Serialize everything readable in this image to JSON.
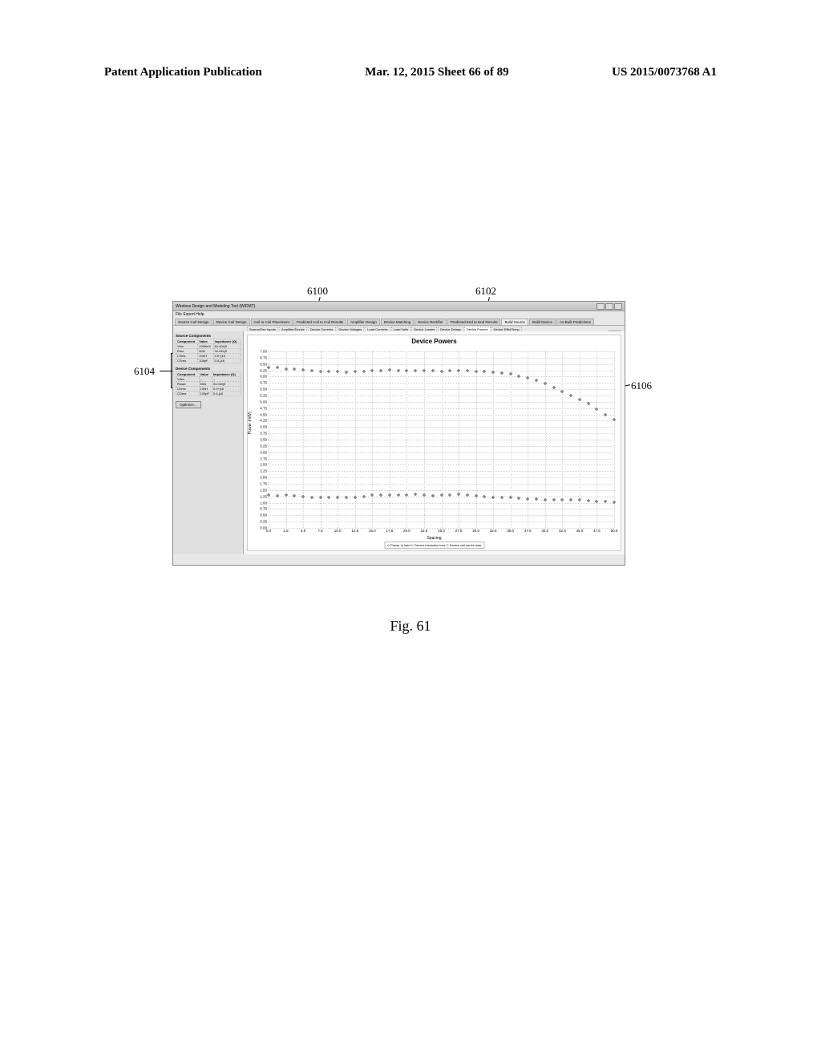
{
  "header": {
    "left": "Patent Application Publication",
    "center": "Mar. 12, 2015  Sheet 66 of 89",
    "right": "US 2015/0073768 A1"
  },
  "callouts": {
    "c6100": "6100",
    "c6102": "6102",
    "c6104": "6104",
    "c6106": "6106"
  },
  "window": {
    "title": "Wireless Design and Modeling Tool (WiDMT)",
    "menu": "File   Export   Help",
    "main_tabs": [
      "Source Coil Design",
      "Device Coil Design",
      "Coil to Coil Placement",
      "Predicted Coil to Coil Results",
      "Amplifier Design",
      "Device Matching",
      "Device Rectifier",
      "Predicted End to End Results",
      "Build Source",
      "Build Device",
      "As-Built Predictions"
    ],
    "active_main_tab": 8,
    "sub_tabs": [
      "Source/Dev Inputs",
      "Amplifier/Device",
      "Device Currents",
      "Device Voltages",
      "Load Currents",
      "Load Volts",
      "Device Losses",
      "Device Delays",
      "Device Powers",
      "Device Effid/Temp"
    ],
    "active_sub_tab": 8
  },
  "sidebar": {
    "source": {
      "title": "Source Components",
      "columns": [
        "Component",
        "Value",
        "Impedance (Ω)"
      ],
      "rows": [
        [
          "Vsrc",
          "1000mV",
          "61.40±j0"
        ],
        [
          "Rsrc",
          "50Ω",
          "31.04±j0"
        ],
        [
          "LSres",
          "10nH",
          "0.0+j16"
        ],
        [
          "CSres",
          "100pF",
          "0.0-j16"
        ]
      ]
    },
    "device": {
      "title": "Device Components",
      "columns": [
        "Component",
        "Value",
        "Impedance (Ω)"
      ],
      "rows": [
        [
          "Vdev",
          "–",
          "–"
        ],
        [
          "Rload",
          "50Ω",
          "31.04±j0"
        ],
        [
          "LDres",
          "10nH",
          "0.0+j16"
        ],
        [
          "CDres",
          "100pF",
          "0.0-j16"
        ]
      ]
    },
    "button": "Optimize..."
  },
  "chart": {
    "type": "scatter",
    "title": "Device Powers",
    "ylabel": "Power (mW)",
    "xlabel": "Spacing",
    "ylim": [
      0.0,
      7.0
    ],
    "ytick_step": 0.25,
    "xlim": [
      0.0,
      50.0
    ],
    "xtick_step": 2.5,
    "grid_color": "#d0d0d0",
    "background_color": "#ffffff",
    "point_color": "#606060",
    "point_size": 3,
    "legend": "◇ Power to load   ◇ Device resonator loss   ◇ Device coil series loss",
    "series": [
      {
        "label": "Power to load",
        "x": [
          0,
          1.25,
          2.5,
          3.75,
          5,
          6.25,
          7.5,
          8.75,
          10,
          11.25,
          12.5,
          13.75,
          15,
          16.25,
          17.5,
          18.75,
          20,
          21.25,
          22.5,
          23.75,
          25,
          26.25,
          27.5,
          28.75,
          30,
          31.25,
          32.5,
          33.75,
          35,
          36.25,
          37.5,
          38.75,
          40,
          41.25,
          42.5,
          43.75,
          45,
          46.25,
          47.5,
          48.75,
          50
        ],
        "y": [
          6.35,
          6.35,
          6.3,
          6.3,
          6.28,
          6.25,
          6.22,
          6.2,
          6.2,
          6.18,
          6.22,
          6.22,
          6.24,
          6.25,
          6.27,
          6.25,
          6.25,
          6.25,
          6.23,
          6.23,
          6.22,
          6.24,
          6.25,
          6.25,
          6.22,
          6.2,
          6.18,
          6.15,
          6.1,
          6.02,
          5.95,
          5.85,
          5.72,
          5.58,
          5.42,
          5.25,
          5.1,
          4.92,
          4.72,
          4.5,
          4.28
        ]
      },
      {
        "label": "Device loss",
        "x": [
          0,
          1.25,
          2.5,
          3.75,
          5,
          6.25,
          7.5,
          8.75,
          10,
          11.25,
          12.5,
          13.75,
          15,
          16.25,
          17.5,
          18.75,
          20,
          21.25,
          22.5,
          23.75,
          25,
          26.25,
          27.5,
          28.75,
          30,
          31.25,
          32.5,
          33.75,
          35,
          36.25,
          37.5,
          38.75,
          40,
          41.25,
          42.5,
          43.75,
          45,
          46.25,
          47.5,
          48.75,
          50
        ],
        "y": [
          1.3,
          1.28,
          1.3,
          1.28,
          1.25,
          1.22,
          1.2,
          1.22,
          1.2,
          1.2,
          1.22,
          1.25,
          1.3,
          1.3,
          1.32,
          1.3,
          1.32,
          1.35,
          1.3,
          1.28,
          1.3,
          1.32,
          1.35,
          1.3,
          1.28,
          1.25,
          1.22,
          1.2,
          1.2,
          1.18,
          1.15,
          1.15,
          1.12,
          1.1,
          1.12,
          1.1,
          1.1,
          1.08,
          1.06,
          1.05,
          1.03
        ]
      }
    ]
  },
  "figure_caption": "Fig. 61"
}
